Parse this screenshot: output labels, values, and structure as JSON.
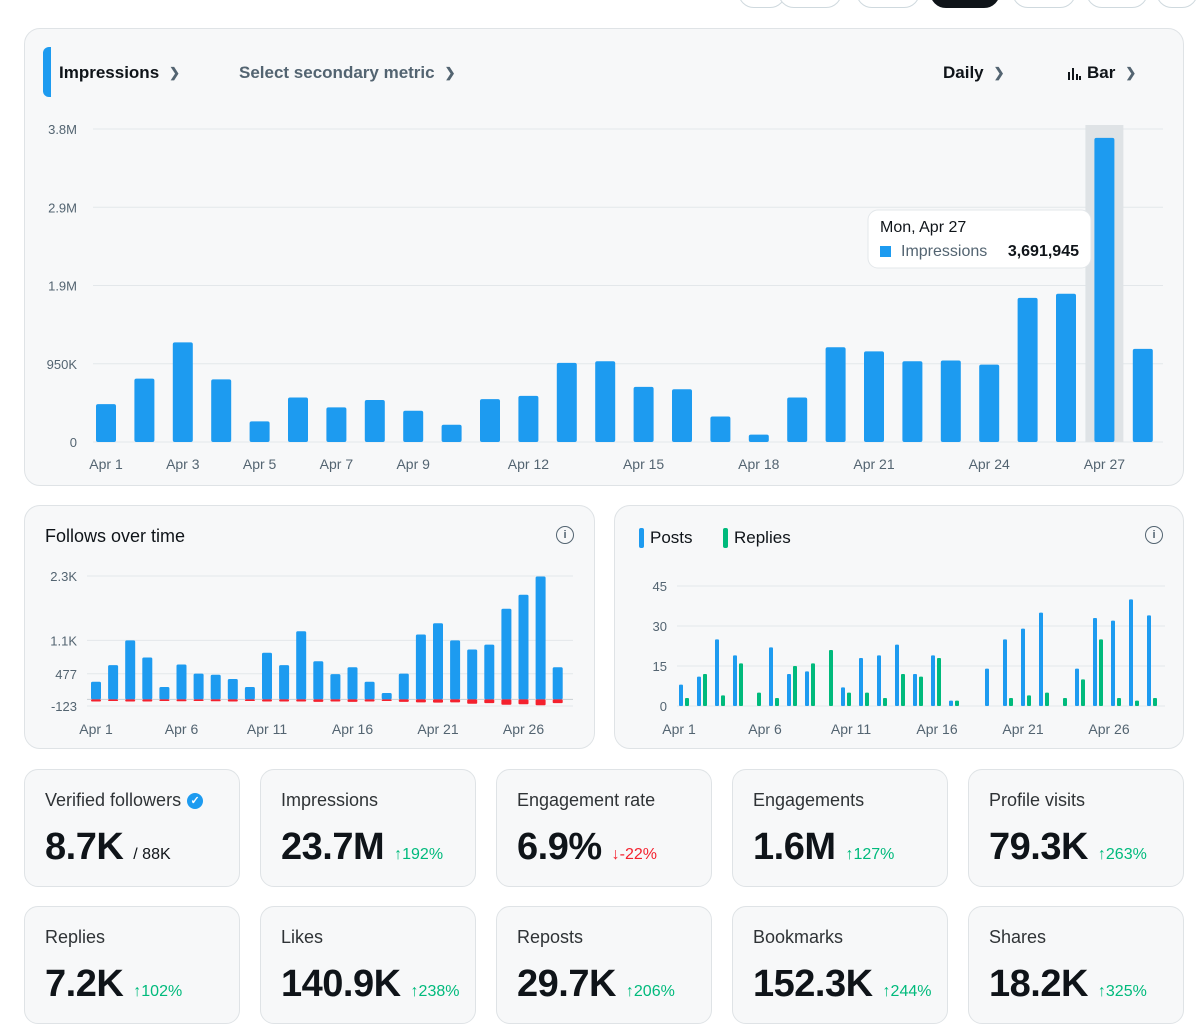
{
  "main_chart": {
    "primary_metric": "Impressions",
    "secondary_metric_placeholder": "Select secondary metric",
    "interval": "Daily",
    "chart_type": "Bar",
    "tooltip": {
      "date": "Mon, Apr 27",
      "series": "Impressions",
      "value": "3,691,945"
    }
  },
  "follows_card": {
    "title": "Follows over time"
  },
  "posts_card": {
    "legend_posts": "Posts",
    "legend_replies": "Replies"
  },
  "stats": [
    {
      "label": "Verified followers",
      "value": "8.7K",
      "sub": "/ 88K",
      "change": "",
      "dir": ""
    },
    {
      "label": "Impressions",
      "value": "23.7M",
      "sub": "",
      "change": "↑192%",
      "dir": "up"
    },
    {
      "label": "Engagement rate",
      "value": "6.9%",
      "sub": "",
      "change": "↓-22%",
      "dir": "down"
    },
    {
      "label": "Engagements",
      "value": "1.6M",
      "sub": "",
      "change": "↑127%",
      "dir": "up"
    },
    {
      "label": "Profile visits",
      "value": "79.3K",
      "sub": "",
      "change": "↑263%",
      "dir": "up"
    },
    {
      "label": "Replies",
      "value": "7.2K",
      "sub": "",
      "change": "↑102%",
      "dir": "up"
    },
    {
      "label": "Likes",
      "value": "140.9K",
      "sub": "",
      "change": "↑238%",
      "dir": "up"
    },
    {
      "label": "Reposts",
      "value": "29.7K",
      "sub": "",
      "change": "↑206%",
      "dir": "up"
    },
    {
      "label": "Bookmarks",
      "value": "152.3K",
      "sub": "",
      "change": "↑244%",
      "dir": "up"
    },
    {
      "label": "Shares",
      "value": "18.2K",
      "sub": "",
      "change": "↑325%",
      "dir": "up"
    }
  ],
  "colors": {
    "blue": "#1d9bf0",
    "green": "#00ba7c",
    "red": "#f4212e",
    "highlight": "#dfe3e6"
  },
  "chart_data": [
    {
      "type": "bar",
      "title": "Impressions",
      "x": [
        "Apr 1",
        "Apr 2",
        "Apr 3",
        "Apr 4",
        "Apr 5",
        "Apr 6",
        "Apr 7",
        "Apr 8",
        "Apr 9",
        "Apr 10",
        "Apr 11",
        "Apr 12",
        "Apr 13",
        "Apr 14",
        "Apr 15",
        "Apr 16",
        "Apr 17",
        "Apr 18",
        "Apr 19",
        "Apr 20",
        "Apr 21",
        "Apr 22",
        "Apr 23",
        "Apr 24",
        "Apr 25",
        "Apr 26",
        "Apr 27",
        "Apr 28"
      ],
      "x_tick_labels": [
        "Apr 1",
        "Apr 3",
        "Apr 5",
        "Apr 7",
        "Apr 9",
        "Apr 12",
        "Apr 15",
        "Apr 18",
        "Apr 21",
        "Apr 24",
        "Apr 27"
      ],
      "y_tick_labels": [
        "0",
        "950K",
        "1.9M",
        "2.9M",
        "3.8M"
      ],
      "ylim": [
        0,
        3800000
      ],
      "values": [
        460000,
        770000,
        1210000,
        760000,
        250000,
        540000,
        420000,
        510000,
        380000,
        210000,
        520000,
        560000,
        960000,
        980000,
        670000,
        640000,
        310000,
        90000,
        540000,
        1150000,
        1100000,
        980000,
        990000,
        940000,
        1750000,
        1800000,
        3691945,
        1130000
      ],
      "highlight_index": 26
    },
    {
      "type": "bar",
      "title": "Follows over time",
      "x_tick_labels": [
        "Apr 1",
        "Apr 6",
        "Apr 11",
        "Apr 16",
        "Apr 21",
        "Apr 26"
      ],
      "y_tick_labels": [
        "-123",
        "477",
        "1.1K",
        "2.3K"
      ],
      "ylim": [
        -123,
        2300
      ],
      "series": [
        {
          "values": [
            330,
            640,
            1100,
            780,
            230,
            650,
            480,
            460,
            380,
            230,
            870,
            640,
            1270,
            710,
            470,
            600,
            330,
            120,
            480,
            1210,
            1420,
            1100,
            930,
            1020,
            1690,
            1950,
            2290,
            600
          ]
        },
        {
          "values": [
            -40,
            -30,
            -40,
            -40,
            -30,
            -35,
            -30,
            -35,
            -40,
            -30,
            -40,
            -40,
            -40,
            -45,
            -40,
            -45,
            -40,
            -30,
            -45,
            -55,
            -60,
            -55,
            -80,
            -70,
            -100,
            -90,
            -110,
            -70
          ]
        }
      ]
    },
    {
      "type": "bar",
      "title": "",
      "x_tick_labels": [
        "Apr 1",
        "Apr 6",
        "Apr 11",
        "Apr 16",
        "Apr 21",
        "Apr 26"
      ],
      "y_tick_labels": [
        "0",
        "15",
        "30",
        "45"
      ],
      "ylim": [
        0,
        45
      ],
      "series": [
        {
          "name": "Posts",
          "values": [
            8,
            11,
            25,
            19,
            0,
            22,
            12,
            13,
            0,
            7,
            18,
            19,
            23,
            12,
            19,
            2,
            0,
            14,
            25,
            29,
            35,
            0,
            14,
            33,
            32,
            40,
            34
          ]
        },
        {
          "name": "Replies",
          "values": [
            3,
            12,
            4,
            16,
            5,
            3,
            15,
            16,
            21,
            5,
            5,
            3,
            12,
            11,
            18,
            2,
            0,
            0,
            3,
            4,
            5,
            3,
            10,
            25,
            3,
            2,
            3
          ]
        }
      ]
    }
  ]
}
